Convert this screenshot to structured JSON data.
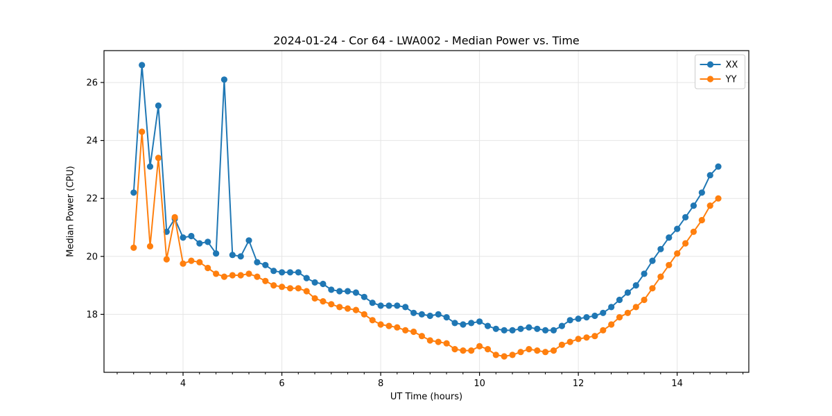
{
  "page": {
    "background": "#ffffff"
  },
  "chart_data": {
    "type": "line",
    "title": "2024-01-24 - Cor 64 - LWA002 - Median Power vs. Time",
    "xlabel": "UT Time (hours)",
    "ylabel": "Median Power (CPU)",
    "xlim": [
      2.4,
      15.45
    ],
    "ylim": [
      16.0,
      27.1
    ],
    "x_ticks": [
      4,
      6,
      8,
      10,
      12,
      14
    ],
    "y_ticks": [
      18,
      20,
      22,
      24,
      26
    ],
    "x_minor_step": 0.3333,
    "grid": true,
    "grid_color": "#e5e5e5",
    "axis_color": "#000000",
    "legend": {
      "position": "upper-right"
    },
    "x": [
      3.0,
      3.167,
      3.333,
      3.5,
      3.667,
      3.833,
      4.0,
      4.167,
      4.333,
      4.5,
      4.667,
      4.833,
      5.0,
      5.167,
      5.333,
      5.5,
      5.667,
      5.833,
      6.0,
      6.167,
      6.333,
      6.5,
      6.667,
      6.833,
      7.0,
      7.167,
      7.333,
      7.5,
      7.667,
      7.833,
      8.0,
      8.167,
      8.333,
      8.5,
      8.667,
      8.833,
      9.0,
      9.167,
      9.333,
      9.5,
      9.667,
      9.833,
      10.0,
      10.167,
      10.333,
      10.5,
      10.667,
      10.833,
      11.0,
      11.167,
      11.333,
      11.5,
      11.667,
      11.833,
      12.0,
      12.167,
      12.333,
      12.5,
      12.667,
      12.833,
      13.0,
      13.167,
      13.333,
      13.5,
      13.667,
      13.833,
      14.0,
      14.167,
      14.333,
      14.5,
      14.667,
      14.833
    ],
    "series": [
      {
        "name": "XX",
        "color": "#1f77b4",
        "values": [
          22.2,
          26.6,
          23.1,
          25.2,
          20.85,
          21.3,
          20.65,
          20.7,
          20.45,
          20.5,
          20.1,
          26.1,
          20.05,
          20.0,
          20.55,
          19.8,
          19.7,
          19.5,
          19.45,
          19.45,
          19.45,
          19.25,
          19.1,
          19.05,
          18.85,
          18.8,
          18.8,
          18.75,
          18.6,
          18.4,
          18.3,
          18.3,
          18.3,
          18.25,
          18.05,
          18.0,
          17.95,
          18.0,
          17.9,
          17.7,
          17.65,
          17.7,
          17.75,
          17.6,
          17.5,
          17.45,
          17.45,
          17.5,
          17.55,
          17.5,
          17.45,
          17.45,
          17.6,
          17.8,
          17.85,
          17.9,
          17.95,
          18.05,
          18.25,
          18.5,
          18.75,
          19.0,
          19.4,
          19.85,
          20.25,
          20.65,
          20.95,
          21.35,
          21.75,
          22.2,
          22.8,
          23.1
        ]
      },
      {
        "name": "YY",
        "color": "#ff7f0e",
        "values": [
          20.3,
          24.3,
          20.35,
          23.4,
          19.9,
          21.35,
          19.75,
          19.85,
          19.8,
          19.6,
          19.4,
          19.3,
          19.35,
          19.35,
          19.4,
          19.3,
          19.15,
          19.0,
          18.95,
          18.9,
          18.9,
          18.8,
          18.55,
          18.45,
          18.35,
          18.25,
          18.2,
          18.15,
          18.0,
          17.8,
          17.65,
          17.6,
          17.55,
          17.45,
          17.4,
          17.25,
          17.1,
          17.05,
          17.0,
          16.8,
          16.75,
          16.75,
          16.9,
          16.8,
          16.6,
          16.55,
          16.6,
          16.7,
          16.8,
          16.75,
          16.7,
          16.75,
          16.95,
          17.05,
          17.15,
          17.2,
          17.25,
          17.45,
          17.65,
          17.9,
          18.05,
          18.25,
          18.5,
          18.9,
          19.3,
          19.7,
          20.1,
          20.45,
          20.85,
          21.25,
          21.75,
          22.0
        ]
      }
    ]
  }
}
